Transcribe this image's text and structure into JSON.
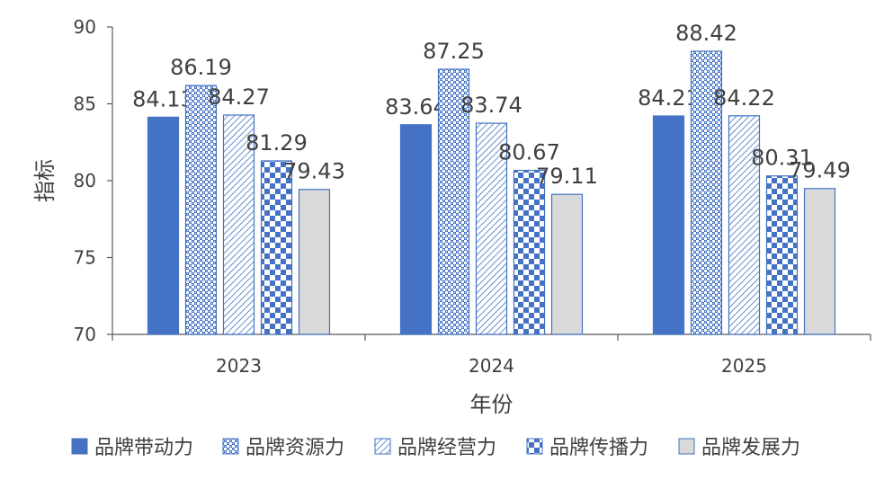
{
  "chart_data": {
    "type": "bar",
    "title": "",
    "xlabel": "年份",
    "ylabel": "指标",
    "ylim": [
      70,
      90
    ],
    "yticks": [
      70,
      75,
      80,
      85,
      90
    ],
    "categories": [
      "2023",
      "2024",
      "2025"
    ],
    "series": [
      {
        "name": "品牌带动力",
        "values": [
          84.13,
          83.64,
          84.21
        ],
        "color": "#4472C4",
        "fill": "solid"
      },
      {
        "name": "品牌资源力",
        "values": [
          86.19,
          87.25,
          88.42
        ],
        "color": "#4472C4",
        "fill": "dotted-dense"
      },
      {
        "name": "品牌经营力",
        "values": [
          84.27,
          83.74,
          84.22
        ],
        "color": "#4472C4",
        "fill": "diagonal-hatch"
      },
      {
        "name": "品牌传播力",
        "values": [
          81.29,
          80.67,
          80.31
        ],
        "color": "#4472C4",
        "fill": "checkerboard"
      },
      {
        "name": "品牌发展力",
        "values": [
          79.43,
          79.11,
          79.49
        ],
        "color": "#D9D9D9",
        "fill": "solid"
      }
    ],
    "grid": false,
    "legend_position": "bottom"
  }
}
